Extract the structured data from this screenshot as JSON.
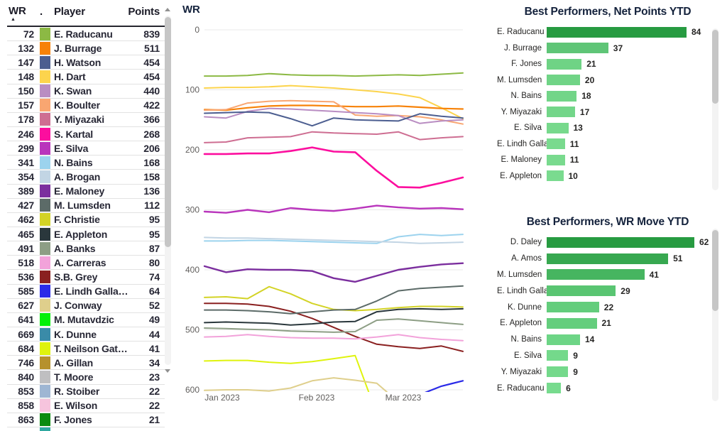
{
  "colors": {
    "accent_dark_green": "#279B41",
    "accent_light_green": "#7ADB8F",
    "grid": "#E8E8E8",
    "axis_label": "#605E5C",
    "title_text": "#14223C",
    "table_text": "#272735"
  },
  "chart_data": [
    {
      "id": "ranking-table",
      "type": "table",
      "columns": [
        "WR",
        ".",
        "Player",
        "Points"
      ],
      "sort": {
        "column": "WR",
        "direction": "ascending"
      },
      "rows": [
        [
          "72",
          "#8CB944",
          "E. Raducanu",
          "839"
        ],
        [
          "132",
          "#F78208",
          "J. Burrage",
          "511"
        ],
        [
          "147",
          "#4C5E90",
          "H. Watson",
          "454"
        ],
        [
          "148",
          "#FCD44D",
          "H. Dart",
          "454"
        ],
        [
          "150",
          "#B98DC2",
          "K. Swan",
          "440"
        ],
        [
          "157",
          "#F9A671",
          "K. Boulter",
          "422"
        ],
        [
          "178",
          "#CE6E92",
          "Y. Miyazaki",
          "366"
        ],
        [
          "246",
          "#FC0E9E",
          "S. Kartal",
          "268"
        ],
        [
          "299",
          "#B935BC",
          "E. Silva",
          "206"
        ],
        [
          "341",
          "#9CD3EE",
          "N. Bains",
          "168"
        ],
        [
          "354",
          "#C2D5E4",
          "A. Brogan",
          "158"
        ],
        [
          "389",
          "#7B2E9E",
          "E. Maloney",
          "136"
        ],
        [
          "427",
          "#5C6B68",
          "M. Lumsden",
          "112"
        ],
        [
          "462",
          "#D3D326",
          "F. Christie",
          "95"
        ],
        [
          "465",
          "#2A373C",
          "E. Appleton",
          "95"
        ],
        [
          "491",
          "#8D9E85",
          "A. Banks",
          "87"
        ],
        [
          "518",
          "#F2A2DA",
          "A. Carreras",
          "80"
        ],
        [
          "536",
          "#8A2020",
          "S.B. Grey",
          "74"
        ],
        [
          "585",
          "#2A2AE8",
          "E. Lindh Galla…",
          "64"
        ],
        [
          "627",
          "#DFCF8C",
          "J. Conway",
          "52"
        ],
        [
          "641",
          "#04F008",
          "M. Mutavdzic",
          "49"
        ],
        [
          "669",
          "#3A8BA8",
          "K. Dunne",
          "44"
        ],
        [
          "684",
          "#DFF30E",
          "T. Neilson Gat…",
          "41"
        ],
        [
          "746",
          "#B6912D",
          "A. Gillan",
          "34"
        ],
        [
          "840",
          "#BFBFC1",
          "T. Moore",
          "23"
        ],
        [
          "853",
          "#9EB6D3",
          "R. Stoiber",
          "22"
        ],
        [
          "858",
          "#F6C4DD",
          "E. Wilson",
          "22"
        ],
        [
          "863",
          "#0B8B0F",
          "F. Jones",
          "21"
        ]
      ],
      "partial_row_color": "#2FA8A0"
    },
    {
      "id": "wr-line",
      "type": "line",
      "title": "WR",
      "ylabel": "WR",
      "ylim": [
        0,
        600
      ],
      "y_inverted": true,
      "grid": true,
      "y_ticks": [
        0,
        100,
        200,
        300,
        400,
        500,
        600
      ],
      "x_tick_labels": [
        "Jan 2023",
        "Feb 2023",
        "Mar 2023"
      ],
      "n_points": 13,
      "series": [
        {
          "name": "E. Raducanu",
          "color": "#8CB944",
          "w": 2,
          "values": [
            77,
            77,
            76,
            73,
            75,
            76,
            76,
            77,
            76,
            75,
            76,
            74,
            72
          ]
        },
        {
          "name": "H. Dart",
          "color": "#FCD44D",
          "w": 2,
          "values": [
            97,
            96,
            96,
            95,
            93,
            95,
            97,
            100,
            103,
            107,
            113,
            130,
            148
          ]
        },
        {
          "name": "J. Burrage",
          "color": "#F78208",
          "w": 2.2,
          "values": [
            133,
            134,
            130,
            127,
            126,
            126,
            127,
            128,
            128,
            127,
            129,
            131,
            132
          ]
        },
        {
          "name": "K. Boulter",
          "color": "#F9A671",
          "w": 2,
          "values": [
            134,
            133,
            122,
            119,
            118,
            119,
            120,
            142,
            144,
            143,
            145,
            150,
            157
          ]
        },
        {
          "name": "K. Swan",
          "color": "#B98DC2",
          "w": 2,
          "values": [
            145,
            147,
            136,
            131,
            132,
            134,
            136,
            138,
            140,
            143,
            156,
            152,
            150
          ]
        },
        {
          "name": "H. Watson",
          "color": "#4C5E90",
          "w": 2,
          "values": [
            139,
            138,
            137,
            138,
            148,
            160,
            147,
            150,
            151,
            152,
            140,
            144,
            147
          ]
        },
        {
          "name": "Y. Miyazaki",
          "color": "#CE6E92",
          "w": 2,
          "values": [
            188,
            187,
            180,
            179,
            178,
            170,
            172,
            173,
            174,
            170,
            183,
            180,
            178
          ]
        },
        {
          "name": "S. Kartal",
          "color": "#FC0E9E",
          "w": 2.6,
          "values": [
            207,
            207,
            206,
            206,
            202,
            196,
            203,
            204,
            235,
            262,
            263,
            255,
            246
          ]
        },
        {
          "name": "E. Silva",
          "color": "#B935BC",
          "w": 2.4,
          "values": [
            303,
            305,
            300,
            304,
            297,
            300,
            302,
            298,
            293,
            296,
            298,
            297,
            299
          ]
        },
        {
          "name": "N. Bains",
          "color": "#9CD3EE",
          "w": 2,
          "values": [
            352,
            352,
            351,
            351,
            352,
            353,
            354,
            355,
            356,
            345,
            341,
            343,
            341
          ]
        },
        {
          "name": "A. Brogan",
          "color": "#C2D5E4",
          "w": 2,
          "values": [
            346,
            347,
            347,
            348,
            349,
            350,
            351,
            352,
            353,
            354,
            356,
            355,
            354
          ]
        },
        {
          "name": "E. Maloney",
          "color": "#7B2E9E",
          "w": 2.4,
          "values": [
            394,
            404,
            399,
            400,
            400,
            402,
            414,
            420,
            410,
            400,
            395,
            391,
            389
          ]
        },
        {
          "name": "F. Christie",
          "color": "#D3D326",
          "w": 2,
          "values": [
            446,
            445,
            448,
            428,
            440,
            456,
            466,
            468,
            466,
            463,
            461,
            461,
            462
          ]
        },
        {
          "name": "S.B. Grey",
          "color": "#8A2020",
          "w": 2,
          "values": [
            456,
            456,
            457,
            461,
            469,
            481,
            496,
            511,
            524,
            528,
            531,
            527,
            536
          ]
        },
        {
          "name": "M. Lumsden",
          "color": "#5C6B68",
          "w": 2,
          "values": [
            467,
            467,
            468,
            470,
            473,
            470,
            467,
            466,
            452,
            435,
            431,
            429,
            427
          ]
        },
        {
          "name": "E. Appleton",
          "color": "#2A373C",
          "w": 2,
          "values": [
            488,
            487,
            488,
            489,
            492,
            490,
            487,
            486,
            470,
            466,
            465,
            466,
            465
          ]
        },
        {
          "name": "A. Banks",
          "color": "#8D9E85",
          "w": 2,
          "values": [
            497,
            498,
            499,
            500,
            502,
            503,
            504,
            503,
            484,
            482,
            485,
            488,
            491
          ]
        },
        {
          "name": "A. Carreras",
          "color": "#F2A2DA",
          "w": 2,
          "values": [
            512,
            511,
            508,
            511,
            513,
            514,
            514,
            515,
            512,
            508,
            513,
            516,
            518
          ]
        },
        {
          "name": "T. Neilson Gat…",
          "color": "#DFF30E",
          "w": 2,
          "values": [
            552,
            551,
            551,
            554,
            556,
            553,
            548,
            543,
            640,
            660,
            675,
            680,
            684
          ]
        },
        {
          "name": "J. Conway",
          "color": "#DFCF8C",
          "w": 2,
          "values": [
            601,
            600,
            600,
            602,
            597,
            585,
            580,
            584,
            589,
            620,
            622,
            625,
            627
          ]
        },
        {
          "name": "E. Lindh Galla…",
          "color": "#2A2AE8",
          "w": 2.2,
          "values": [
            null,
            null,
            null,
            null,
            null,
            null,
            null,
            null,
            null,
            null,
            608,
            594,
            585
          ]
        }
      ]
    },
    {
      "id": "net-points",
      "type": "bar",
      "orientation": "horizontal",
      "title": "Best Performers, Net Points YTD",
      "categories": [
        "E. Raducanu",
        "J. Burrage",
        "F. Jones",
        "M. Lumsden",
        "N. Bains",
        "Y. Miyazaki",
        "E. Silva",
        "E. Lindh Galla…",
        "E. Maloney",
        "E. Appleton"
      ],
      "values": [
        84,
        37,
        21,
        20,
        18,
        17,
        13,
        11,
        11,
        10
      ],
      "bar_colors": [
        "#279B41",
        "#5FC577",
        "#6FD385",
        "#70D486",
        "#72D588",
        "#73D689",
        "#77D98C",
        "#79DA8E",
        "#79DA8E",
        "#7ADB8F"
      ]
    },
    {
      "id": "wr-move",
      "type": "bar",
      "orientation": "horizontal",
      "title": "Best Performers, WR Move YTD",
      "categories": [
        "D. Daley",
        "A. Amos",
        "M. Lumsden",
        "E. Lindh Galla…",
        "K. Dunne",
        "E. Appleton",
        "N. Bains",
        "E. Silva",
        "Y. Miyazaki",
        "E. Raducanu"
      ],
      "values": [
        62,
        51,
        41,
        29,
        22,
        21,
        14,
        9,
        9,
        6
      ],
      "bar_colors": [
        "#279B41",
        "#37A850",
        "#46B560",
        "#59C572",
        "#63CD7C",
        "#64CE7D",
        "#6DD586",
        "#74D98B",
        "#74D98B",
        "#77DB8E"
      ]
    }
  ]
}
